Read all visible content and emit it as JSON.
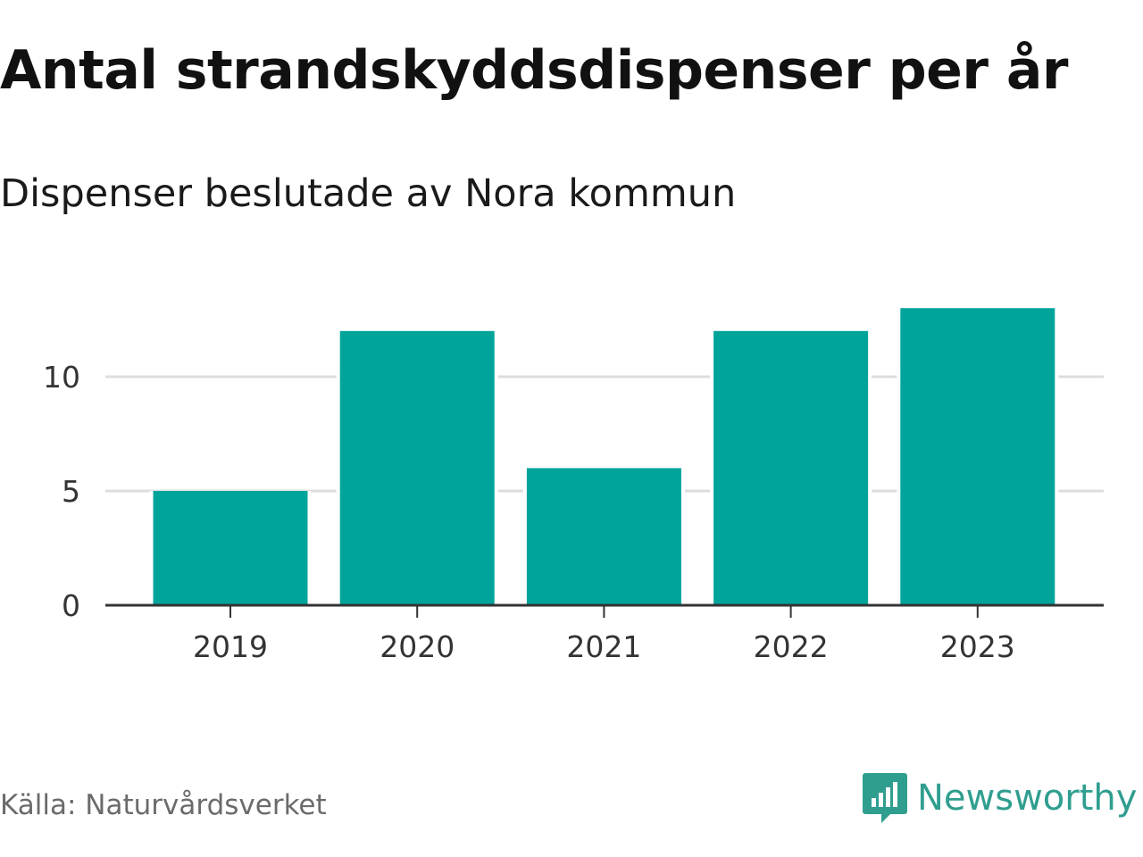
{
  "title": "Antal strandskyddsdispenser per år",
  "subtitle": "Dispenser beslutade av Nora kommun",
  "source": "Källa: Naturvårdsverket",
  "brand": {
    "name": "Newsworthy",
    "icon": "newsworthy-logo-icon"
  },
  "colors": {
    "bar": "#00a49a",
    "grid": "#dddddd",
    "axis": "#333333",
    "brand": "#2f9e8f"
  },
  "chart_data": {
    "type": "bar",
    "categories": [
      "2019",
      "2020",
      "2021",
      "2022",
      "2023"
    ],
    "values": [
      5,
      12,
      6,
      12,
      13
    ],
    "ylim": [
      0,
      13
    ],
    "yticks": [
      0,
      5,
      10
    ],
    "title": "Antal strandskyddsdispenser per år",
    "xlabel": "",
    "ylabel": "",
    "grid": true
  }
}
